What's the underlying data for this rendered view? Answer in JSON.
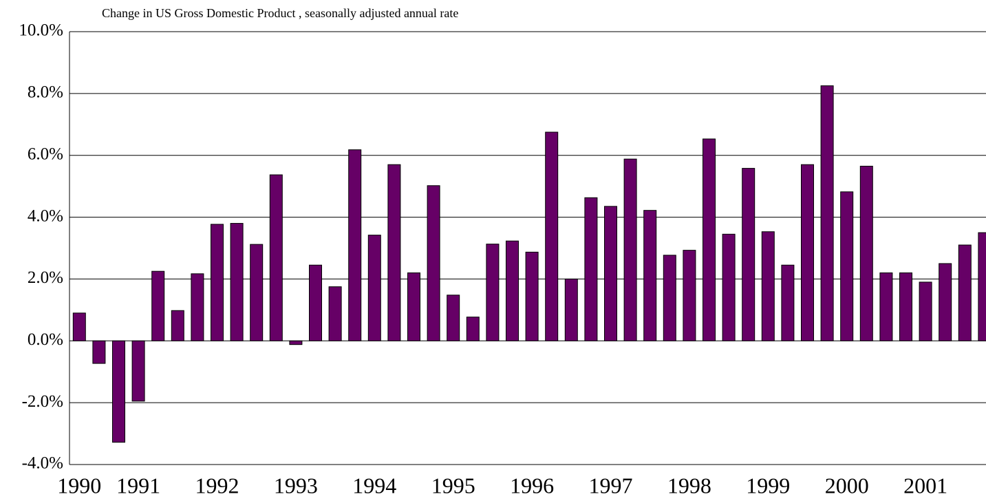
{
  "chart_data": {
    "type": "bar",
    "title": "Change in US Gross Domestic Product , seasonally adjusted annual rate",
    "categories": [
      "1990",
      null,
      null,
      "1991",
      null,
      null,
      null,
      "1992",
      null,
      null,
      null,
      "1993",
      null,
      null,
      null,
      "1994",
      null,
      null,
      null,
      "1995",
      null,
      null,
      null,
      "1996",
      null,
      null,
      null,
      "1997",
      null,
      null,
      null,
      "1998",
      null,
      null,
      null,
      "1999",
      null,
      null,
      null,
      "2000",
      null,
      null,
      null,
      "2001",
      null,
      null,
      null
    ],
    "values": [
      0.9,
      -0.73,
      -3.28,
      -1.95,
      2.25,
      0.98,
      2.17,
      3.77,
      3.8,
      3.12,
      5.37,
      -0.12,
      2.45,
      1.75,
      6.18,
      3.42,
      5.7,
      2.2,
      5.02,
      1.48,
      0.77,
      3.13,
      3.23,
      2.87,
      6.75,
      2.0,
      4.63,
      4.35,
      5.88,
      4.22,
      2.77,
      2.93,
      6.53,
      3.45,
      5.58,
      3.53,
      2.45,
      5.7,
      8.25,
      4.82,
      5.65,
      2.2,
      2.2,
      1.9,
      2.5,
      3.1,
      3.5
    ],
    "color": "#660066",
    "ylim": [
      -4,
      10
    ],
    "yticks": [
      {
        "value": -4,
        "label": "-4.0%"
      },
      {
        "value": -2,
        "label": "-2.0%"
      },
      {
        "value": 0,
        "label": "0.0%"
      },
      {
        "value": 2,
        "label": "2.0%"
      },
      {
        "value": 4,
        "label": "4.0%"
      },
      {
        "value": 6,
        "label": "6.0%"
      },
      {
        "value": 8,
        "label": "8.0%"
      },
      {
        "value": 10,
        "label": "10.0%"
      }
    ],
    "grid": true
  }
}
